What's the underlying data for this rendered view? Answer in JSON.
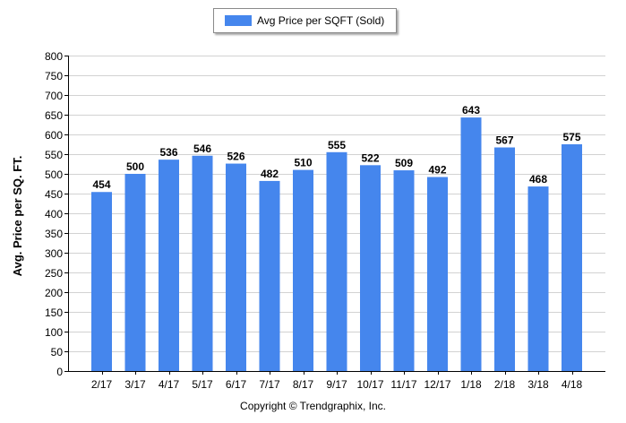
{
  "colors": {
    "bar": "#4586ED",
    "grid": "#d2d2d2",
    "axis": "#000000"
  },
  "legend": {
    "label": "Avg Price per SQFT (Sold)"
  },
  "footer": {
    "copyright": "Copyright © Trendgraphix, Inc."
  },
  "chart_data": {
    "type": "bar",
    "categories": [
      "2/17",
      "3/17",
      "4/17",
      "5/17",
      "6/17",
      "7/17",
      "8/17",
      "9/17",
      "10/17",
      "11/17",
      "12/17",
      "1/18",
      "2/18",
      "3/18",
      "4/18"
    ],
    "series": [
      {
        "name": "Avg Price per SQFT (Sold)",
        "values": [
          454,
          500,
          536,
          546,
          526,
          482,
          510,
          555,
          522,
          509,
          492,
          643,
          567,
          468,
          575
        ]
      }
    ],
    "ylabel": "Avg. Price per SQ. FT.",
    "xlabel": "",
    "ylim": [
      0,
      800
    ],
    "yticks": [
      0,
      50,
      100,
      150,
      200,
      250,
      300,
      350,
      400,
      450,
      500,
      550,
      600,
      650,
      700,
      750,
      800
    ],
    "grid": true,
    "legend_position": "top-center",
    "data_labels": true
  }
}
